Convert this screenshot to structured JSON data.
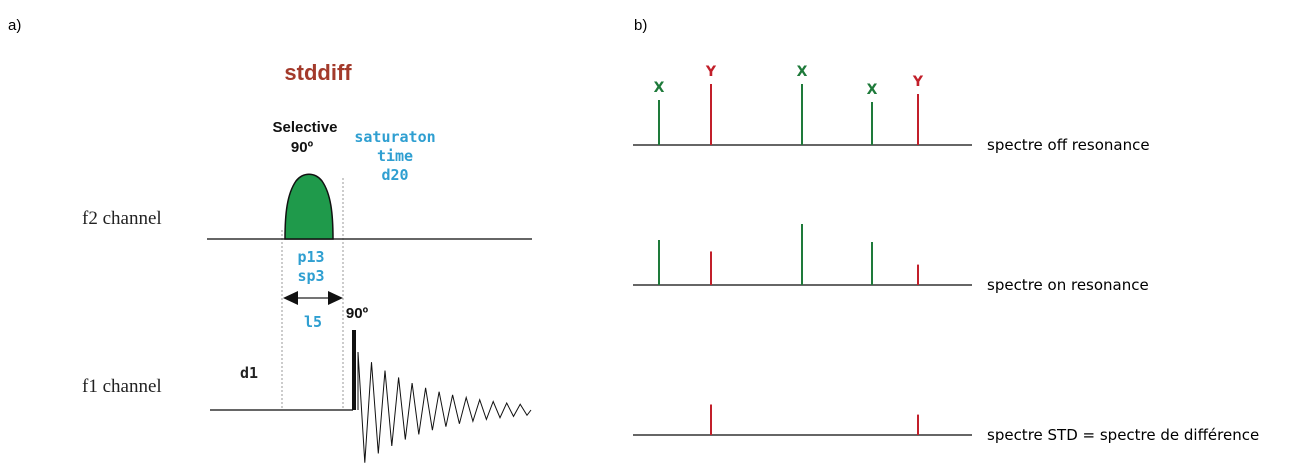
{
  "panel_a": {
    "label": "a)",
    "title": "stddiff",
    "selective_label": [
      "Selective",
      "90º"
    ],
    "saturation_label": [
      "saturaton",
      "time",
      "d20"
    ],
    "f2_label": "f2 channel",
    "f1_label": "f1 channel",
    "pulse_params": [
      "p13",
      "sp3"
    ],
    "loop_label": "l5",
    "hard_pulse_label": "90º",
    "delay_label": "d1",
    "colors": {
      "pulse_fill": "#1f9a4b",
      "blue_text": "#2f9fd1",
      "title": "#a33a2b"
    }
  },
  "panel_b": {
    "label": "b)",
    "spectra": [
      {
        "label": "spectre off resonance",
        "peaks": [
          {
            "type": "X",
            "height": 1.0,
            "show_label": true
          },
          {
            "type": "Y",
            "height": 1.0,
            "show_label": true
          },
          {
            "type": "X",
            "height": 1.0,
            "show_label": true
          },
          {
            "type": "X",
            "height": 1.0,
            "show_label": true
          },
          {
            "type": "Y",
            "height": 1.0,
            "show_label": true
          }
        ]
      },
      {
        "label": "spectre on resonance",
        "peaks": [
          {
            "type": "X",
            "height": 1.0,
            "show_label": false
          },
          {
            "type": "Y",
            "height": 0.55,
            "show_label": false
          },
          {
            "type": "X",
            "height": 1.0,
            "show_label": false
          },
          {
            "type": "X",
            "height": 1.0,
            "show_label": false
          },
          {
            "type": "Y",
            "height": 0.4,
            "show_label": false
          }
        ]
      },
      {
        "label": "spectre STD = spectre de différence",
        "peaks": [
          {
            "type": "Y",
            "height": 0.5,
            "show_label": false
          },
          {
            "type": "Y",
            "height": 0.4,
            "show_label": false
          }
        ]
      }
    ],
    "colors": {
      "X": "#1e7a3a",
      "Y": "#c21f2a"
    }
  }
}
